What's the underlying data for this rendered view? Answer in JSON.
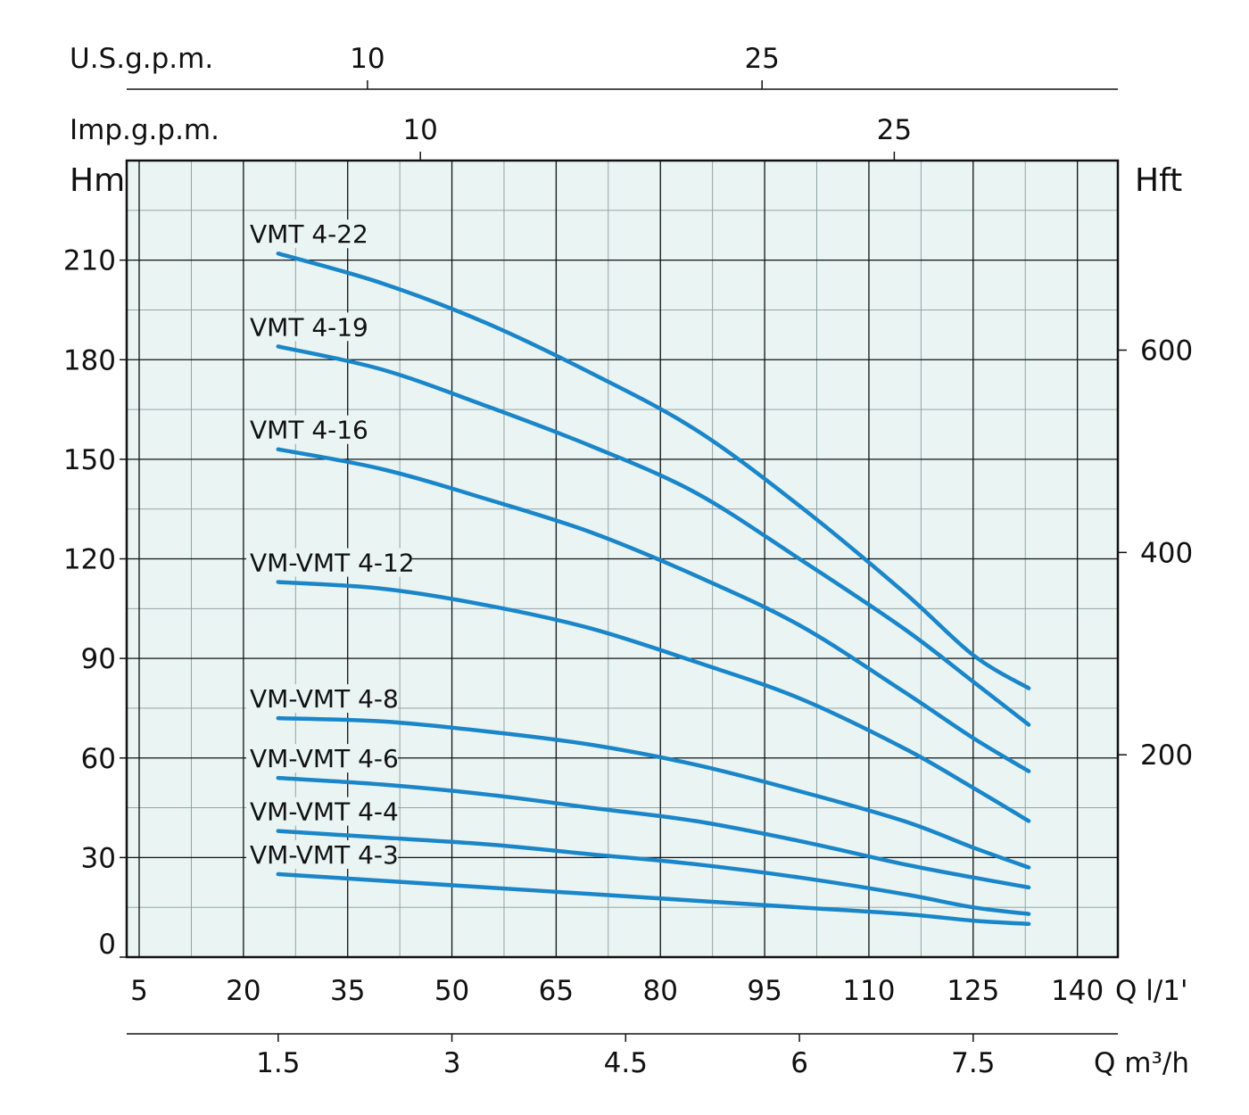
{
  "chart_data": {
    "type": "line",
    "title": "",
    "bg_color": "#e9f4f3",
    "line_color": "#1a86c9",
    "grid": true,
    "ylim": [
      0,
      240
    ],
    "xlim": [
      5,
      148
    ],
    "y_left": {
      "unit": "Hm",
      "ticks": [
        0,
        30,
        60,
        90,
        120,
        150,
        180,
        210
      ]
    },
    "y_right": {
      "unit": "Hft",
      "ticks": [
        200,
        400,
        600
      ],
      "factor": 3.2808
    },
    "x_bottom": {
      "unit": "Q l/1'",
      "ticks": [
        5,
        20,
        35,
        50,
        65,
        80,
        95,
        110,
        125,
        140
      ]
    },
    "x_m3h": {
      "unit": "Q m³/h",
      "ticks": [
        1.5,
        3,
        4.5,
        6,
        7.5
      ],
      "factor": 16.667
    },
    "x_imp": {
      "unit": "Imp.g.p.m.",
      "ticks": [
        10,
        25
      ],
      "factor": 4.546
    },
    "x_us": {
      "unit": "U.S.g.p.m.",
      "ticks": [
        10,
        25
      ],
      "factor": 3.785
    },
    "series": [
      {
        "name": "VMT 4-22",
        "x": [
          25,
          40,
          55,
          70,
          85,
          100,
          115,
          125,
          133
        ],
        "y": [
          212,
          203,
          191,
          176,
          159,
          136,
          110,
          91,
          81
        ]
      },
      {
        "name": "VMT 4-19",
        "x": [
          25,
          40,
          55,
          70,
          85,
          100,
          115,
          125,
          133
        ],
        "y": [
          184,
          177,
          166,
          154,
          140,
          120,
          99,
          83,
          70
        ]
      },
      {
        "name": "VMT 4-16",
        "x": [
          25,
          40,
          55,
          70,
          85,
          100,
          115,
          125,
          133
        ],
        "y": [
          153,
          147,
          138,
          128,
          115,
          100,
          80,
          66,
          56
        ]
      },
      {
        "name": "VM-VMT 4-12",
        "x": [
          25,
          40,
          55,
          70,
          85,
          100,
          115,
          125,
          133
        ],
        "y": [
          113,
          111,
          106,
          99,
          89,
          78,
          63,
          51,
          41
        ]
      },
      {
        "name": "VM-VMT 4-8",
        "x": [
          25,
          40,
          55,
          70,
          85,
          100,
          115,
          125,
          133
        ],
        "y": [
          72,
          71,
          68,
          64,
          58,
          50,
          41,
          33,
          27
        ]
      },
      {
        "name": "VM-VMT 4-6",
        "x": [
          25,
          40,
          55,
          70,
          85,
          100,
          115,
          125,
          133
        ],
        "y": [
          54,
          52,
          49,
          45,
          41,
          35,
          28,
          24,
          21
        ]
      },
      {
        "name": "VM-VMT 4-4",
        "x": [
          25,
          40,
          55,
          70,
          85,
          100,
          115,
          125,
          133
        ],
        "y": [
          38,
          36,
          34,
          31,
          28,
          24,
          19,
          15,
          13
        ]
      },
      {
        "name": "VM-VMT 4-3",
        "x": [
          25,
          40,
          55,
          70,
          85,
          100,
          115,
          125,
          133
        ],
        "y": [
          25,
          23,
          21,
          19,
          17,
          15,
          13,
          11,
          10
        ]
      }
    ]
  }
}
